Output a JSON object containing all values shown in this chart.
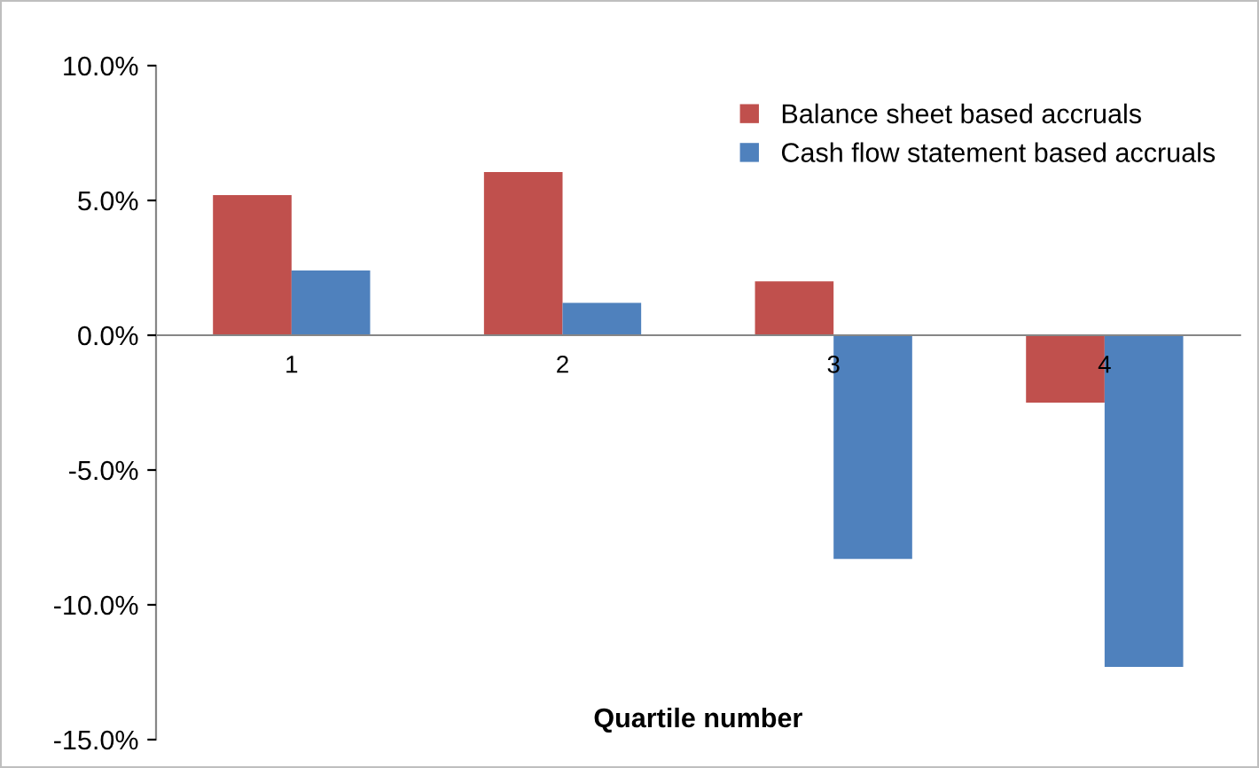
{
  "chart_data": {
    "type": "bar",
    "xlabel": "Quartile number",
    "categories": [
      "1",
      "2",
      "3",
      "4"
    ],
    "series": [
      {
        "name": "Balance sheet based accruals",
        "color": "#c0504d",
        "values": [
          5.2,
          6.05,
          2.0,
          -2.5
        ]
      },
      {
        "name": "Cash flow statement based accruals",
        "color": "#4f81bd",
        "values": [
          2.4,
          1.2,
          -8.3,
          -12.3
        ]
      }
    ],
    "ylim": [
      -15,
      10
    ],
    "yticks": [
      {
        "value": -15,
        "label": "-15.0%"
      },
      {
        "value": -10,
        "label": "-10.0%"
      },
      {
        "value": -5,
        "label": "-5.0%"
      },
      {
        "value": 0,
        "label": "0.0%"
      },
      {
        "value": 5,
        "label": "5.0%"
      },
      {
        "value": 10,
        "label": "10.0%"
      }
    ],
    "legend": "top right",
    "grid": false
  }
}
